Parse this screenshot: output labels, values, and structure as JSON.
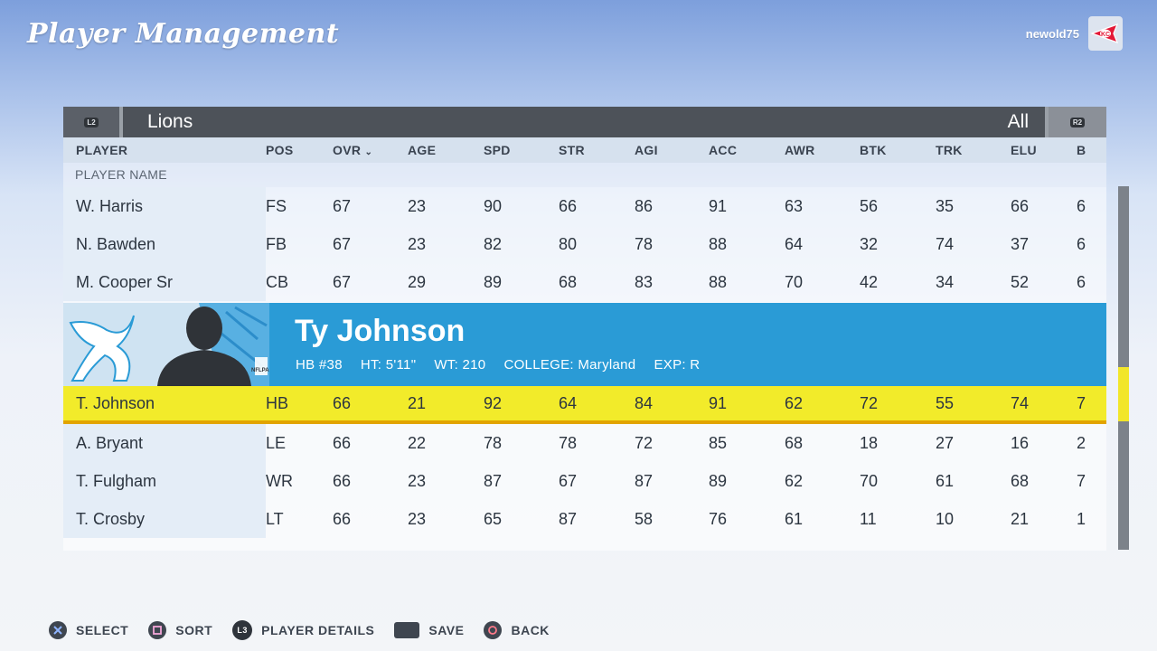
{
  "header": {
    "title": "Player Management",
    "username": "newold75",
    "team_logo_icon": "kc-arrowhead-logo"
  },
  "teambar": {
    "left_bumper": "L2",
    "team": "Lions",
    "filter": "All",
    "right_bumper": "R2"
  },
  "columns": {
    "player": "PLAYER",
    "pos": "POS",
    "ovr": "OVR",
    "age": "AGE",
    "spd": "SPD",
    "str": "STR",
    "agi": "AGI",
    "acc": "ACC",
    "awr": "AWR",
    "btk": "BTK",
    "trk": "TRK",
    "elu": "ELU",
    "b": "B"
  },
  "subheader": "PLAYER NAME",
  "rows_top": [
    {
      "name": "W. Harris",
      "pos": "FS",
      "ovr": "67",
      "age": "23",
      "spd": "90",
      "str": "66",
      "agi": "86",
      "acc": "91",
      "awr": "63",
      "btk": "56",
      "trk": "35",
      "elu": "66",
      "b": "6"
    },
    {
      "name": "N. Bawden",
      "pos": "FB",
      "ovr": "67",
      "age": "23",
      "spd": "82",
      "str": "80",
      "agi": "78",
      "acc": "88",
      "awr": "64",
      "btk": "32",
      "trk": "74",
      "elu": "37",
      "b": "6"
    },
    {
      "name": "M. Cooper Sr",
      "pos": "CB",
      "ovr": "67",
      "age": "29",
      "spd": "89",
      "str": "68",
      "agi": "83",
      "acc": "88",
      "awr": "70",
      "btk": "42",
      "trk": "34",
      "elu": "52",
      "b": "6"
    }
  ],
  "card": {
    "name": "Ty Johnson",
    "position": "HB #38",
    "height": "HT: 5'11\"",
    "weight": "WT: 210",
    "college": "COLLEGE: Maryland",
    "exp": "EXP: R",
    "badge": "NFLPA"
  },
  "selected": {
    "name": "T. Johnson",
    "pos": "HB",
    "ovr": "66",
    "age": "21",
    "spd": "92",
    "str": "64",
    "agi": "84",
    "acc": "91",
    "awr": "62",
    "btk": "72",
    "trk": "55",
    "elu": "74",
    "b": "7"
  },
  "rows_bottom": [
    {
      "name": "A. Bryant",
      "pos": "LE",
      "ovr": "66",
      "age": "22",
      "spd": "78",
      "str": "78",
      "agi": "72",
      "acc": "85",
      "awr": "68",
      "btk": "18",
      "trk": "27",
      "elu": "16",
      "b": "2"
    },
    {
      "name": "T. Fulgham",
      "pos": "WR",
      "ovr": "66",
      "age": "23",
      "spd": "87",
      "str": "67",
      "agi": "87",
      "acc": "89",
      "awr": "62",
      "btk": "70",
      "trk": "61",
      "elu": "68",
      "b": "7"
    },
    {
      "name": "T. Crosby",
      "pos": "LT",
      "ovr": "66",
      "age": "23",
      "spd": "65",
      "str": "87",
      "agi": "58",
      "acc": "76",
      "awr": "61",
      "btk": "11",
      "trk": "10",
      "elu": "21",
      "b": "1"
    }
  ],
  "footer": {
    "select": "SELECT",
    "sort": "SORT",
    "l3": "L3",
    "details": "PLAYER DETAILS",
    "save": "SAVE",
    "back": "BACK"
  },
  "colors": {
    "selected_row": "#f2eb2a",
    "card_blue": "#2a9bd6",
    "teambar": "#4d5259"
  }
}
